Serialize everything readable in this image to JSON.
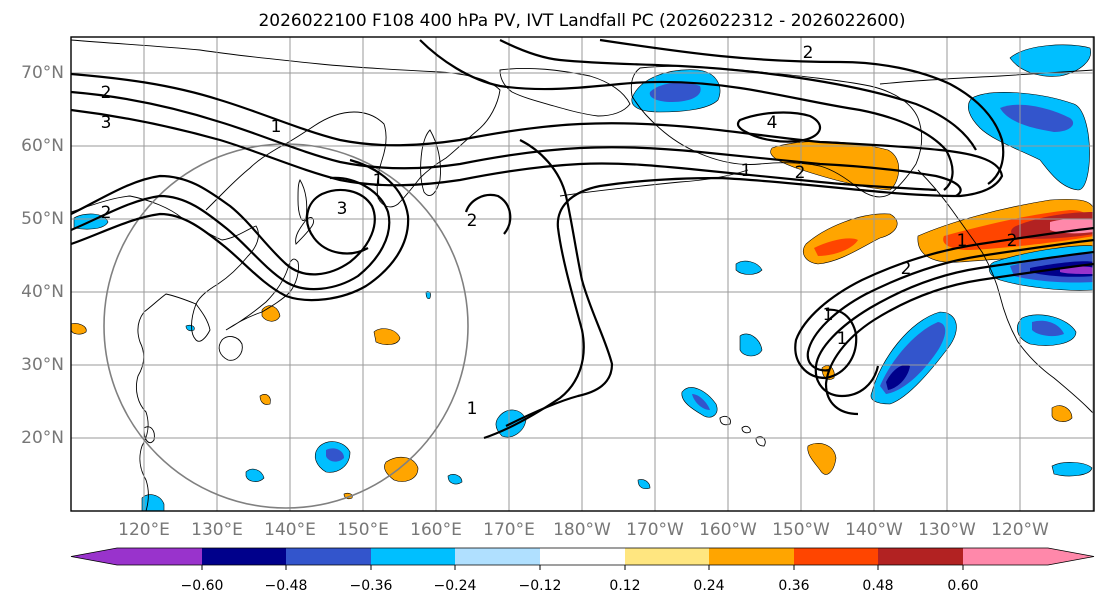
{
  "figure": {
    "title": "2026022100 F108 400 hPa PV, IVT Landfall PC (2026022312 - 2026022600)"
  },
  "axes": {
    "lat_labels": [
      "70°N",
      "60°N",
      "50°N",
      "40°N",
      "30°N",
      "20°N"
    ],
    "lon_labels": [
      "120°E",
      "130°E",
      "140°E",
      "150°E",
      "160°E",
      "170°E",
      "180°W",
      "170°W",
      "160°W",
      "150°W",
      "140°W",
      "130°W",
      "120°W"
    ]
  },
  "contour_labels": [
    "2",
    "3",
    "1",
    "1",
    "2",
    "3",
    "2",
    "1",
    "2",
    "4",
    "1",
    "2",
    "2",
    "1",
    "1",
    "1",
    "2"
  ],
  "colorbar": {
    "tick_labels": [
      "−0.60",
      "−0.48",
      "−0.36",
      "−0.24",
      "−0.12",
      "0.12",
      "0.24",
      "0.36",
      "0.48",
      "0.60"
    ],
    "colors": [
      "#9933cc",
      "#00008b",
      "#3355cc",
      "#00bfff",
      "#b0e0ff",
      "#ffffff",
      "#ffe680",
      "#ffa500",
      "#ff4500",
      "#b22222",
      "#ff88aa"
    ]
  },
  "palette": {
    "purple": "#9933cc",
    "navy": "#00008b",
    "blue": "#3355cc",
    "cyan": "#00bfff",
    "lightblue": "#b0e0ff",
    "yellow": "#ffe680",
    "orange": "#ffa500",
    "redorange": "#ff4500",
    "darkred": "#b22222",
    "pink": "#ff88aa"
  }
}
